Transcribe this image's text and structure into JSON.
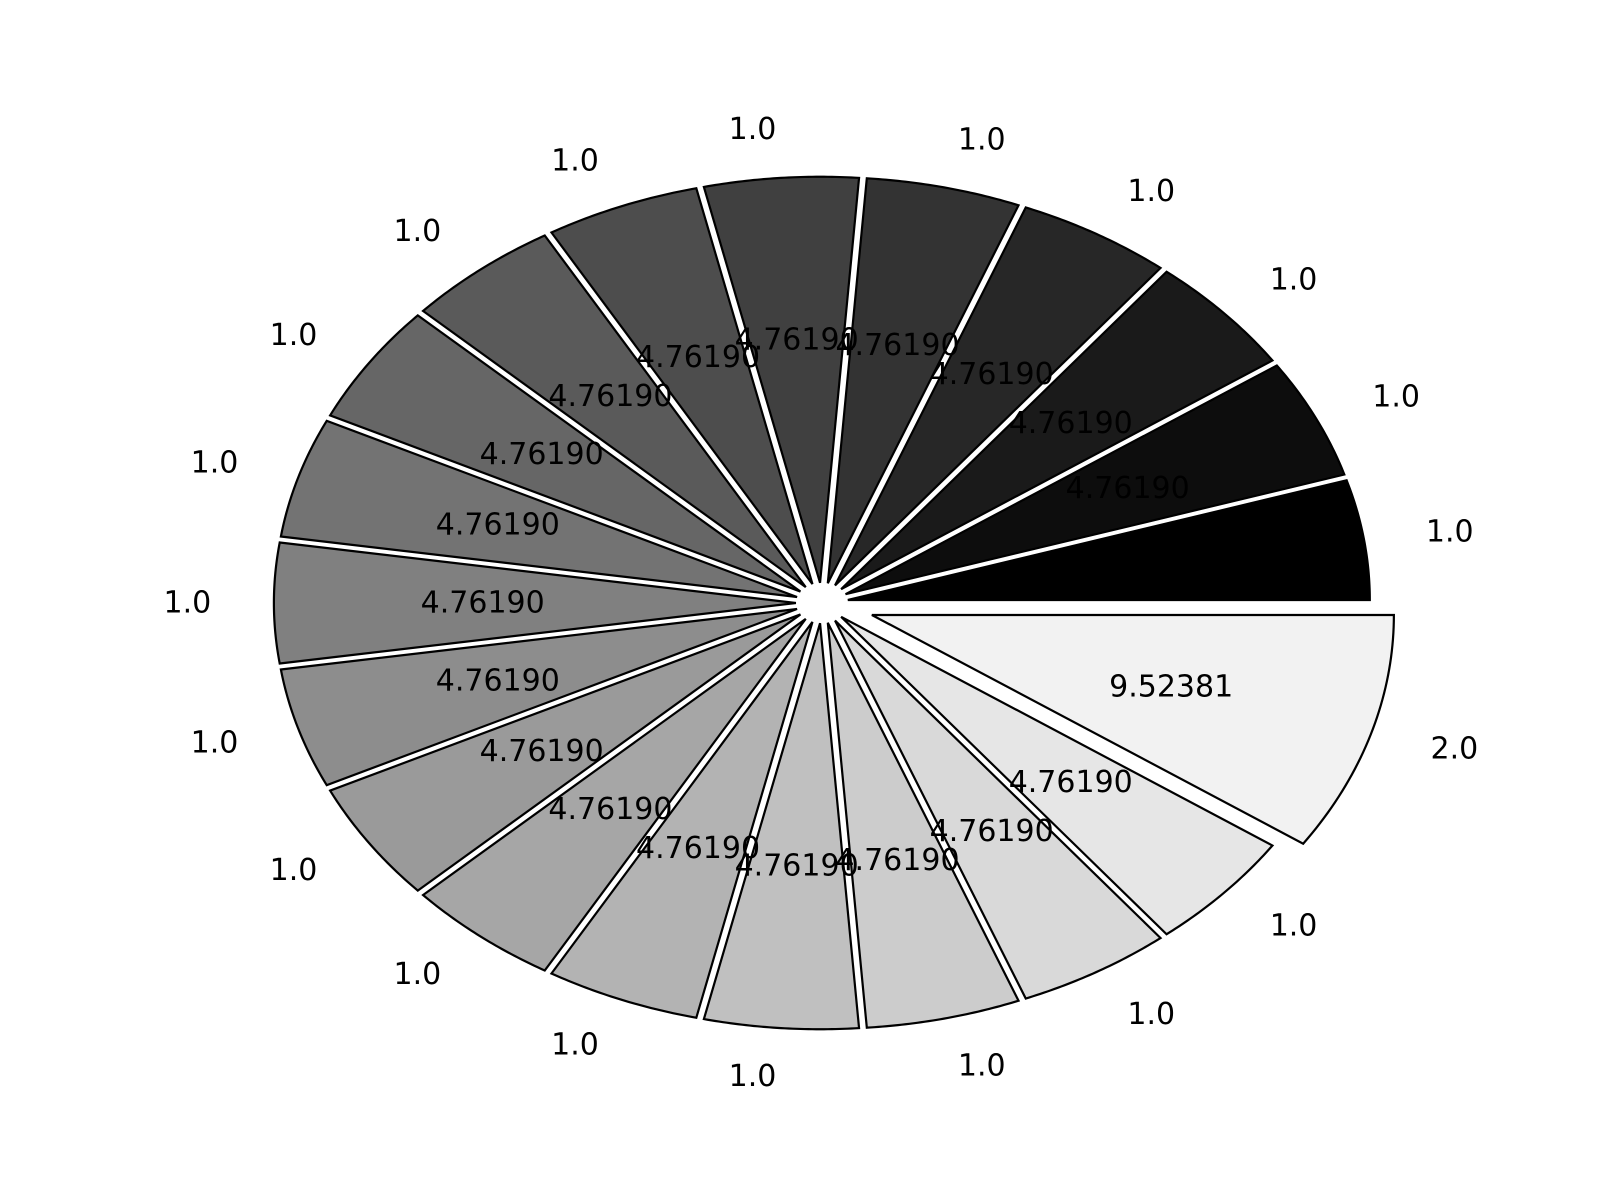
{
  "chart_data": {
    "type": "pie",
    "title": "",
    "values": [
      1.0,
      1.0,
      1.0,
      1.0,
      1.0,
      1.0,
      1.0,
      1.0,
      1.0,
      1.0,
      1.0,
      1.0,
      1.0,
      1.0,
      1.0,
      1.0,
      1.0,
      1.0,
      1.0,
      2.0
    ],
    "outer_labels": [
      "1.0",
      "1.0",
      "1.0",
      "1.0",
      "1.0",
      "1.0",
      "1.0",
      "1.0",
      "1.0",
      "1.0",
      "1.0",
      "1.0",
      "1.0",
      "1.0",
      "1.0",
      "1.0",
      "1.0",
      "1.0",
      "1.0",
      "2.0"
    ],
    "percent_labels": [
      "4.76190",
      "4.76190",
      "4.76190",
      "4.76190",
      "4.76190",
      "4.76190",
      "4.76190",
      "4.76190",
      "4.76190",
      "4.76190",
      "4.76190",
      "4.76190",
      "4.76190",
      "4.76190",
      "4.76190",
      "4.76190",
      "4.76190",
      "4.76190",
      "4.76190",
      "9.52381"
    ],
    "colors": [
      "#000000",
      "#0d0d0d",
      "#1a1a1a",
      "#272727",
      "#333333",
      "#404040",
      "#4d4d4d",
      "#5a5a5a",
      "#666666",
      "#737373",
      "#808080",
      "#8d8d8d",
      "#9a9a9a",
      "#a6a6a6",
      "#b3b3b3",
      "#c0c0c0",
      "#cccccc",
      "#d9d9d9",
      "#e6e6e6",
      "#f2f2f2"
    ],
    "explode": [
      0.05,
      0.05,
      0.05,
      0.05,
      0.05,
      0.05,
      0.05,
      0.05,
      0.05,
      0.05,
      0.05,
      0.05,
      0.05,
      0.05,
      0.05,
      0.05,
      0.05,
      0.05,
      0.05,
      0.1
    ],
    "start_angle_deg": 0,
    "direction": "counterclockwise",
    "legend": "none",
    "grid": false
  }
}
